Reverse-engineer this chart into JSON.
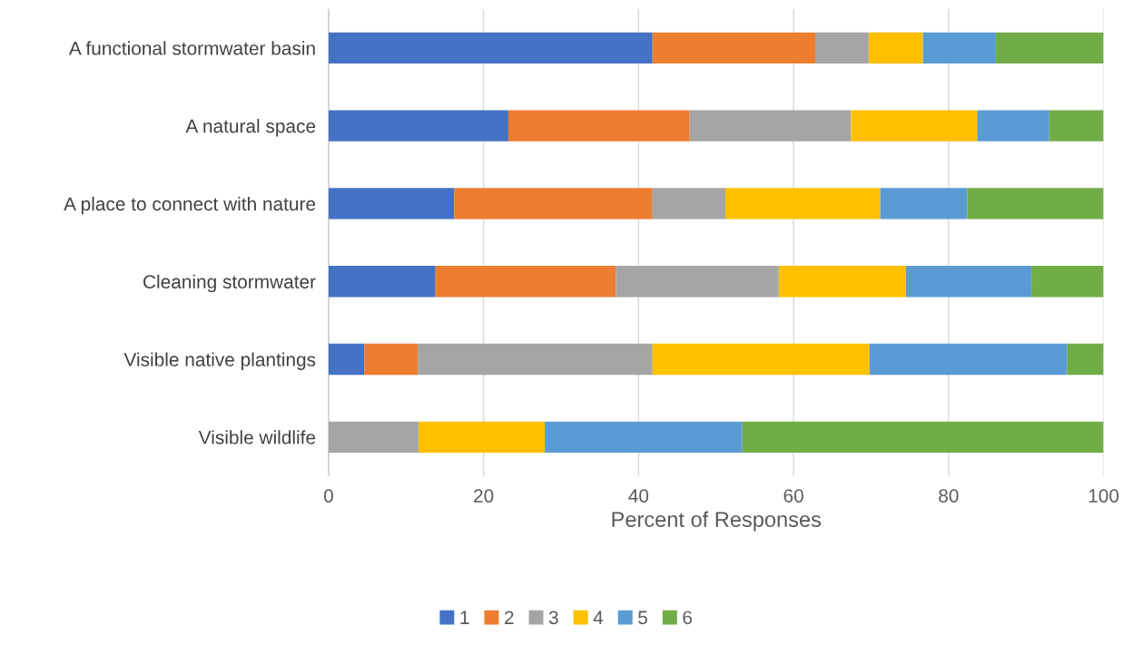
{
  "chart_data": {
    "type": "bar",
    "orientation": "horizontal",
    "stacked": true,
    "xlabel": "Percent of Responses",
    "categories": [
      "A functional stormwater basin",
      "A natural space",
      "A place to connect with nature",
      "Cleaning stormwater",
      "Visible native plantings",
      "Visible wildlife"
    ],
    "series": [
      {
        "name": "1",
        "color": "#4472c4",
        "values": [
          41.8,
          23.2,
          16.2,
          13.8,
          4.6,
          0
        ]
      },
      {
        "name": "2",
        "color": "#ed7d31",
        "values": [
          21.0,
          23.4,
          25.6,
          23.3,
          6.9,
          0
        ]
      },
      {
        "name": "3",
        "color": "#a5a5a5",
        "values": [
          6.9,
          20.8,
          9.4,
          21.0,
          30.3,
          11.6
        ]
      },
      {
        "name": "4",
        "color": "#ffc000",
        "values": [
          7.0,
          16.3,
          20.0,
          16.4,
          28.0,
          16.3
        ]
      },
      {
        "name": "5",
        "color": "#5b9bd5",
        "values": [
          9.4,
          9.3,
          11.2,
          16.2,
          25.5,
          25.5
        ]
      },
      {
        "name": "6",
        "color": "#70ad47",
        "values": [
          13.9,
          7.0,
          17.6,
          9.3,
          4.7,
          46.6
        ]
      }
    ],
    "xlim": [
      0,
      100
    ],
    "xticks": [
      0,
      20,
      40,
      60,
      80,
      100
    ],
    "grid": "x",
    "legend": "bottom"
  }
}
